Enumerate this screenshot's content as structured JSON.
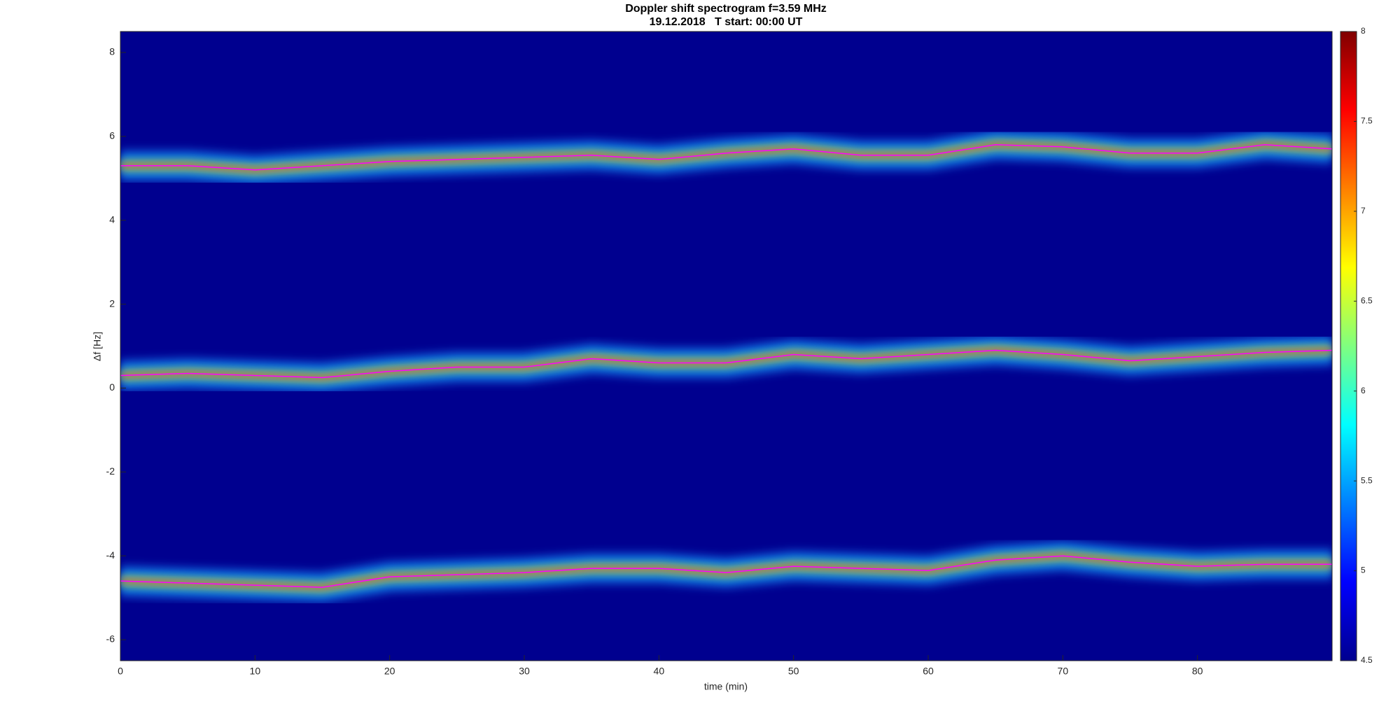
{
  "chart_data": {
    "type": "spectrogram",
    "title": "Doppler shift spectrogram f=3.59 MHz",
    "subtitle": "19.12.2018   T start: 00:00 UT",
    "x_label": "time (min)",
    "y_label": "Δf [Hz]",
    "x": [
      0,
      5,
      10,
      15,
      20,
      25,
      30,
      35,
      40,
      45,
      50,
      55,
      60,
      65,
      70,
      75,
      80,
      85,
      90
    ],
    "series": [
      {
        "color": "#ff00ff",
        "values": [
          5.3,
          5.3,
          5.2,
          5.3,
          5.4,
          5.45,
          5.5,
          5.55,
          5.45,
          5.6,
          5.7,
          5.55,
          5.55,
          5.8,
          5.75,
          5.6,
          5.6,
          5.8,
          5.7
        ]
      },
      {
        "color": "#ff00ff",
        "values": [
          0.3,
          0.35,
          0.3,
          0.25,
          0.4,
          0.5,
          0.5,
          0.7,
          0.6,
          0.6,
          0.8,
          0.7,
          0.8,
          0.9,
          0.8,
          0.65,
          0.75,
          0.85,
          0.9
        ]
      },
      {
        "color": "#ff00ff",
        "values": [
          -4.6,
          -4.65,
          -4.7,
          -4.75,
          -4.5,
          -4.45,
          -4.4,
          -4.3,
          -4.3,
          -4.4,
          -4.25,
          -4.3,
          -4.35,
          -4.1,
          -4.0,
          -4.15,
          -4.25,
          -4.2,
          -4.2
        ]
      }
    ],
    "xlim": [
      0,
      90
    ],
    "xticks": [
      0,
      10,
      20,
      30,
      40,
      50,
      60,
      70,
      80
    ],
    "ylim": [
      -6.5,
      8.5
    ],
    "yticks": [
      -6,
      -4,
      -2,
      0,
      2,
      4,
      6,
      8
    ],
    "clim": [
      4.5,
      8
    ],
    "cticks": [
      4.5,
      5,
      5.5,
      6,
      6.5,
      7,
      7.5,
      8
    ],
    "background_color": "#00008f"
  }
}
